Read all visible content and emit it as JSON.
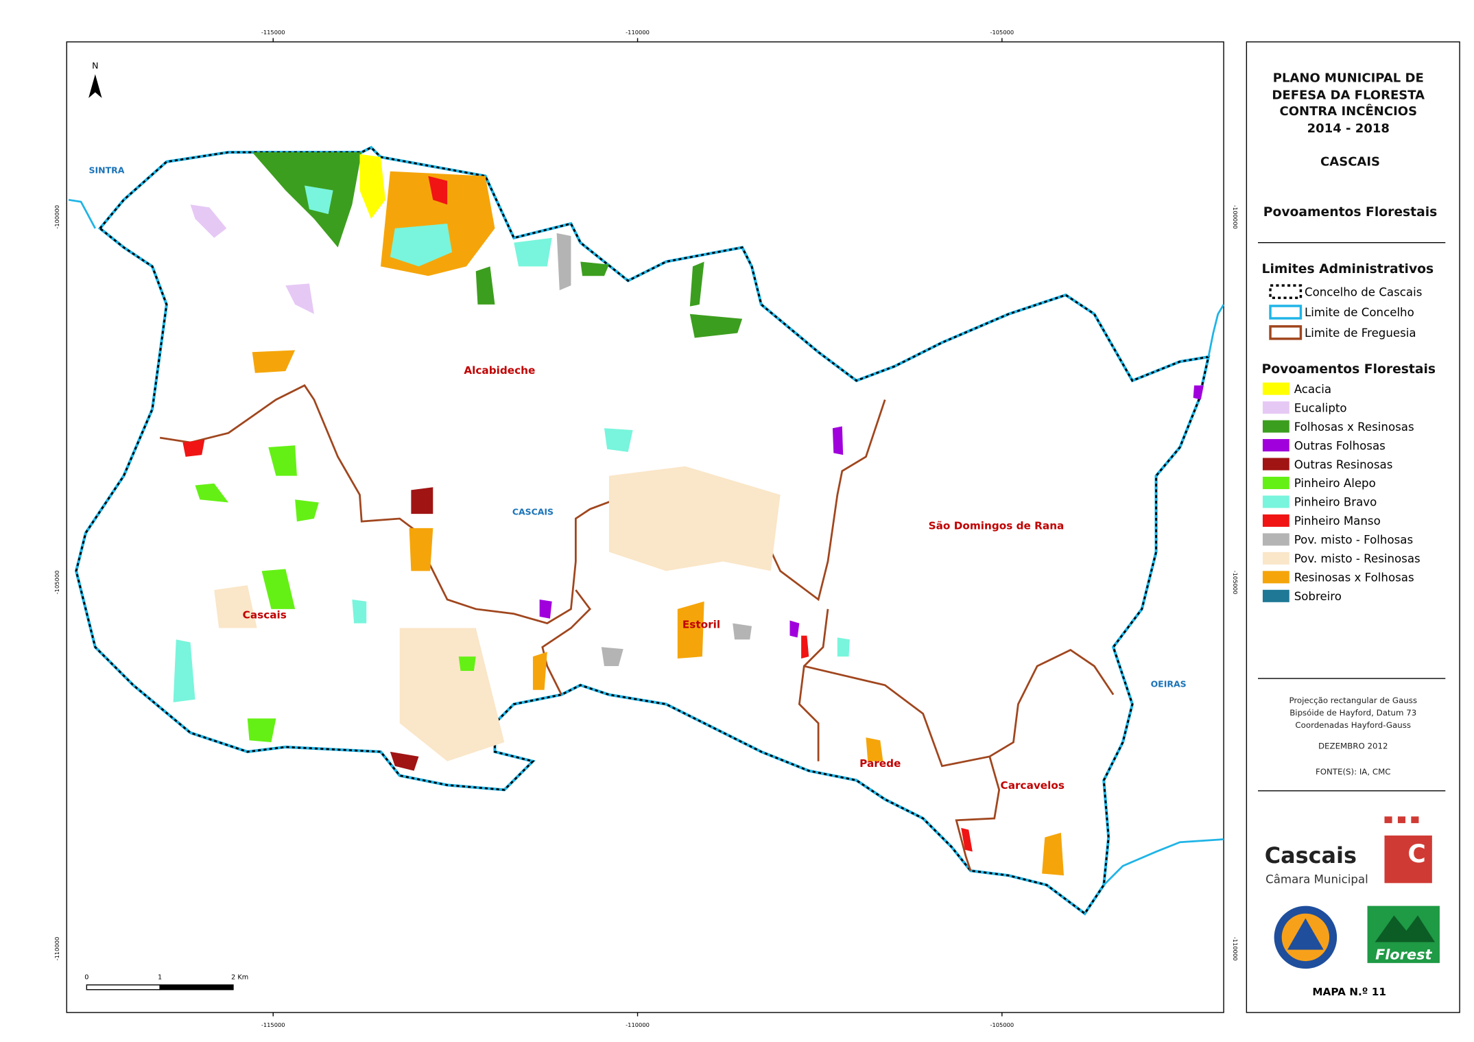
{
  "map": {
    "coord_labels": {
      "top": [
        "-115000",
        "-110000",
        "-105000"
      ],
      "bottom": [
        "-115000",
        "-110000",
        "-105000"
      ],
      "left": [
        "-100000",
        "-105000",
        "-110000"
      ],
      "right": [
        "-100000",
        "-105000",
        "-110000"
      ]
    },
    "north": "N",
    "places": {
      "sintra": "SINTRA",
      "alcabideche": "Alcabideche",
      "cascais_town": "CASCAIS",
      "cascais": "Cascais",
      "estoril": "Estoril",
      "sdr": "São Domingos de Rana",
      "oeiras": "OEIRAS",
      "parede": "Parede",
      "carcavelos": "Carcavelos"
    },
    "scale": [
      "0",
      "1",
      "2 Km"
    ]
  },
  "panel": {
    "title_lines": [
      "PLANO MUNICIPAL DE",
      "DEFESA DA FLORESTA",
      "CONTRA INCÊNCIOS",
      "2014 - 2018"
    ],
    "municipality": "CASCAIS",
    "subject": "Povoamentos Florestais",
    "admin_heading": "Limites Administrativos",
    "admin_items": [
      {
        "label": "Concelho de Cascais",
        "color": "#000000"
      },
      {
        "label": "Limite de Concelho",
        "color": "#1fb4e6"
      },
      {
        "label": "Limite de Freguesia",
        "color": "#a0461e"
      }
    ],
    "forest_heading": "Povoamentos Florestais",
    "forest_items": [
      {
        "label": "Acacia",
        "color": "#ffff00"
      },
      {
        "label": "Eucalipto",
        "color": "#e6c8f5"
      },
      {
        "label": "Folhosas x Resinosas",
        "color": "#3c9e1e"
      },
      {
        "label": "Outras Folhosas",
        "color": "#a000dc"
      },
      {
        "label": "Outras Resinosas",
        "color": "#a01414"
      },
      {
        "label": "Pinheiro Alepo",
        "color": "#64f014"
      },
      {
        "label": "Pinheiro Bravo",
        "color": "#78f5dc"
      },
      {
        "label": "Pinheiro Manso",
        "color": "#f01414"
      },
      {
        "label": "Pov. misto - Folhosas",
        "color": "#b4b4b4"
      },
      {
        "label": "Pov. misto - Resinosas",
        "color": "#fae6c8"
      },
      {
        "label": "Resinosas x Folhosas",
        "color": "#f5a50a"
      },
      {
        "label": "Sobreiro",
        "color": "#1e7896"
      }
    ],
    "notes": [
      "Projecção rectangular de Gauss",
      "Bipsóide de Hayford, Datum 73",
      "Coordenadas Hayford-Gauss"
    ],
    "date": "DEZEMBRO 2012",
    "source": "FONTE(S): IA, CMC",
    "logo_cascais": "Cascais",
    "logo_camara": "Câmara Municipal",
    "logo_c": "C",
    "logo_florest": "Florest",
    "map_number": "MAPA N.º 11"
  }
}
